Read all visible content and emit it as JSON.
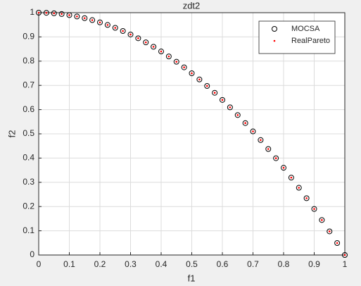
{
  "chart_data": {
    "type": "scatter",
    "title": "zdt2",
    "xlabel": "f1",
    "ylabel": "f2",
    "x": [
      0,
      0.025,
      0.05,
      0.075,
      0.1,
      0.125,
      0.15,
      0.175,
      0.2,
      0.225,
      0.25,
      0.275,
      0.3,
      0.325,
      0.35,
      0.375,
      0.4,
      0.425,
      0.45,
      0.475,
      0.5,
      0.525,
      0.55,
      0.575,
      0.6,
      0.625,
      0.65,
      0.675,
      0.7,
      0.725,
      0.75,
      0.775,
      0.8,
      0.825,
      0.85,
      0.875,
      0.9,
      0.925,
      0.95,
      0.975,
      1
    ],
    "series": [
      {
        "name": "MOCSA",
        "color": "#000000",
        "marker": "circle",
        "values": [
          1,
          0.9994,
          0.9975,
          0.9944,
          0.99,
          0.9844,
          0.9775,
          0.9694,
          0.96,
          0.9494,
          0.9375,
          0.9244,
          0.91,
          0.8944,
          0.8775,
          0.8594,
          0.84,
          0.8194,
          0.7975,
          0.7744,
          0.75,
          0.7244,
          0.6975,
          0.6694,
          0.64,
          0.6094,
          0.5775,
          0.5444,
          0.51,
          0.4744,
          0.4375,
          0.3994,
          0.36,
          0.3194,
          0.2775,
          0.2344,
          0.19,
          0.1444,
          0.0975,
          0.0494,
          0
        ]
      },
      {
        "name": "RealPareto",
        "color": "#ff0000",
        "marker": "dot",
        "values": [
          1,
          0.9994,
          0.9975,
          0.9944,
          0.99,
          0.9844,
          0.9775,
          0.9694,
          0.96,
          0.9494,
          0.9375,
          0.9244,
          0.91,
          0.8944,
          0.8775,
          0.8594,
          0.84,
          0.8194,
          0.7975,
          0.7744,
          0.75,
          0.7244,
          0.6975,
          0.6694,
          0.64,
          0.6094,
          0.5775,
          0.5444,
          0.51,
          0.4744,
          0.4375,
          0.3994,
          0.36,
          0.3194,
          0.2775,
          0.2344,
          0.19,
          0.1444,
          0.0975,
          0.0494,
          0
        ]
      }
    ],
    "xlim": [
      0,
      1
    ],
    "ylim": [
      0,
      1
    ],
    "xticks": [
      0,
      0.1,
      0.2,
      0.3,
      0.4,
      0.5,
      0.6,
      0.7,
      0.8,
      0.9,
      1
    ],
    "yticks": [
      0,
      0.1,
      0.2,
      0.3,
      0.4,
      0.5,
      0.6,
      0.7,
      0.8,
      0.9,
      1
    ],
    "grid": true,
    "legend": "top-right"
  }
}
